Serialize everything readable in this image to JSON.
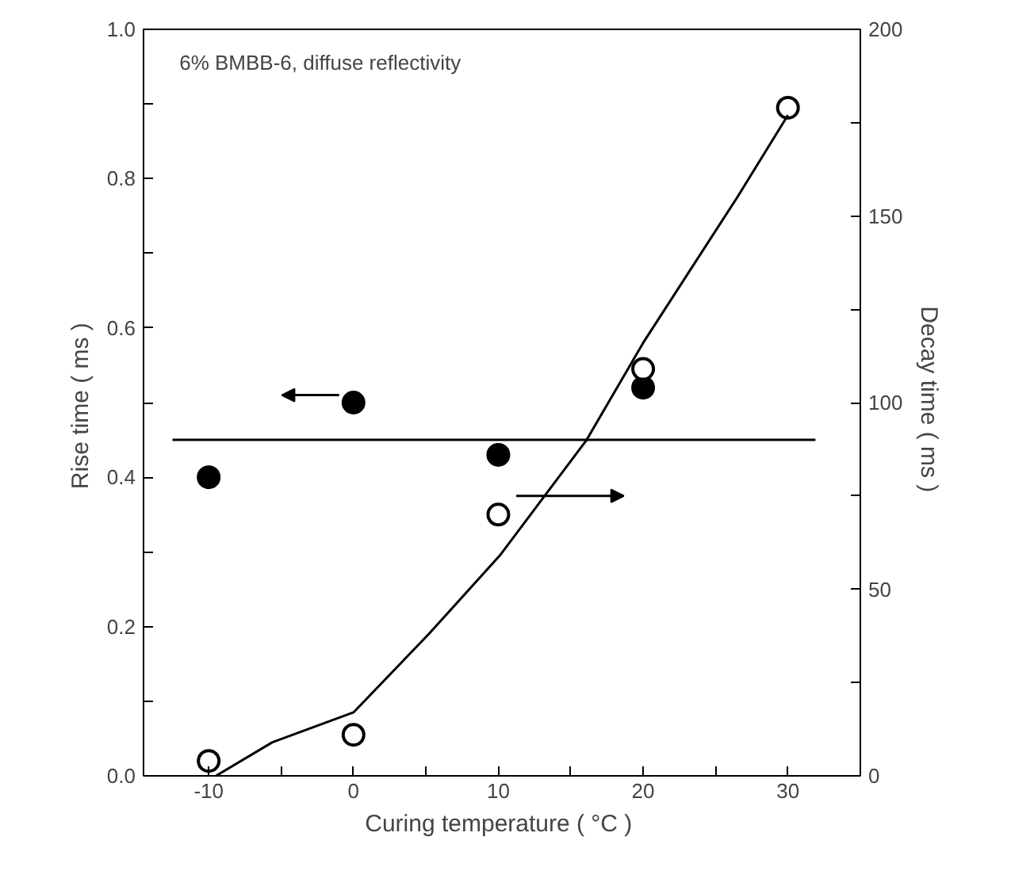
{
  "chart_data": {
    "type": "scatter",
    "xlabel": "Curing temperature  ( °C )",
    "ylabel": "Rise time  ( ms )",
    "y2label": "Decay time  ( ms )",
    "annotations": [
      "6% BMBB-6, diffuse reflectivity"
    ],
    "series": [
      {
        "color": "#000000",
        "marker": "circle",
        "x": [
          -10,
          0,
          10,
          20
        ],
        "values": [
          0.4,
          0.5,
          0.43,
          0.52
        ]
      },
      {
        "color": "#000000",
        "marker": "circle",
        "axis": "y2",
        "x": [
          -10,
          0,
          10,
          20,
          30
        ],
        "values": [
          4,
          11,
          70,
          109,
          179
        ]
      },
      {
        "type": "line",
        "color": "#000000",
        "marker": "none",
        "x": [
          -12.5,
          31.9
        ],
        "values": [
          0.45,
          0.45
        ]
      },
      {
        "type": "line",
        "color": "#000000",
        "marker": "none",
        "axis": "y2",
        "x": [
          -9.5,
          -5.6,
          0,
          5.2,
          10.1,
          16.1,
          20,
          26.5,
          30
        ],
        "values": [
          0,
          9,
          17,
          38,
          59,
          90,
          116,
          155,
          177
        ]
      }
    ],
    "xlim": [
      -14.5,
      35
    ],
    "ylim": [
      0,
      1.0
    ],
    "y2lim": [
      0,
      200
    ],
    "xticks": [
      -10,
      {
        "value": -5,
        "label": null
      },
      0,
      {
        "value": 5,
        "label": null
      },
      10,
      {
        "value": 15,
        "label": null
      },
      20,
      {
        "value": 25,
        "label": null
      },
      30
    ],
    "yticks": [
      {
        "value": 0,
        "label": "0.0"
      },
      {
        "value": 0.1,
        "label": null
      },
      0.2,
      {
        "value": 0.3,
        "label": null
      },
      0.4,
      {
        "value": 0.5,
        "label": null
      },
      0.6,
      {
        "value": 0.7,
        "label": null
      },
      0.8,
      {
        "value": 0.9,
        "label": null
      },
      {
        "value": 1.0,
        "label": "1.0"
      }
    ],
    "y2ticks": [
      0,
      {
        "value": 25,
        "label": null
      },
      50,
      {
        "value": 75,
        "label": null
      },
      100,
      {
        "value": 125,
        "label": null
      },
      150,
      {
        "value": 175,
        "label": null
      },
      200
    ],
    "grid": false
  }
}
